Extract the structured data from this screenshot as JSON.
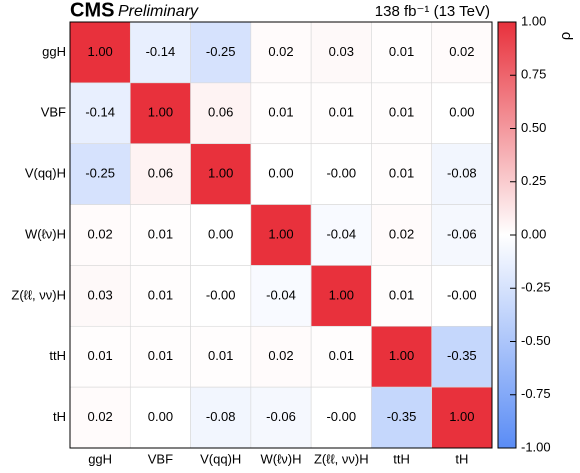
{
  "chart_data": {
    "type": "heatmap",
    "title": "CMS",
    "subtitle": "Preliminary",
    "annotation": "138 fb⁻¹ (13 TeV)",
    "colorbar_label": "ρ",
    "categories": [
      "ggH",
      "VBF",
      "V(qq)H",
      "W(ℓν)H",
      "Z(ℓℓ, νν)H",
      "ttH",
      "tH"
    ],
    "y_categories": [
      "ggH",
      "VBF",
      "V(qq)H",
      "W(ℓν)H",
      "Z(ℓℓ, νν)H",
      "ttH",
      "tH"
    ],
    "z": [
      [
        1,
        -0.14,
        -0.25,
        0.02,
        0.03,
        0.01,
        0.02
      ],
      [
        -0.14,
        1,
        0.06,
        0.01,
        0.01,
        0.01,
        0
      ],
      [
        -0.25,
        0.06,
        1,
        0,
        0,
        0.01,
        -0.08
      ],
      [
        0.02,
        0.01,
        0,
        1,
        -0.04,
        0.02,
        -0.06
      ],
      [
        0.03,
        0.01,
        0,
        -0.04,
        1,
        0.01,
        0
      ],
      [
        0.01,
        0.01,
        0.01,
        0.02,
        0.01,
        1,
        -0.35
      ],
      [
        0.02,
        0,
        -0.08,
        -0.06,
        0,
        -0.35,
        1
      ]
    ],
    "value_labels": [
      [
        "1.00",
        "-0.14",
        "-0.25",
        "0.02",
        "0.03",
        "0.01",
        "0.02"
      ],
      [
        "-0.14",
        "1.00",
        "0.06",
        "0.01",
        "0.01",
        "0.01",
        "0.00"
      ],
      [
        "-0.25",
        "0.06",
        "1.00",
        "0.00",
        "-0.00",
        "0.01",
        "-0.08"
      ],
      [
        "0.02",
        "0.01",
        "0.00",
        "1.00",
        "-0.04",
        "0.02",
        "-0.06"
      ],
      [
        "0.03",
        "0.01",
        "-0.00",
        "-0.04",
        "1.00",
        "0.01",
        "-0.00"
      ],
      [
        "0.01",
        "0.01",
        "0.01",
        "0.02",
        "0.01",
        "1.00",
        "-0.35"
      ],
      [
        "0.02",
        "0.00",
        "-0.08",
        "-0.06",
        "-0.00",
        "-0.35",
        "1.00"
      ]
    ],
    "zlim": [
      -1,
      1
    ],
    "zticks": [
      {
        "value": -1,
        "label": "-1.00"
      },
      {
        "value": -0.75,
        "label": "-0.75"
      },
      {
        "value": -0.5,
        "label": "-0.50"
      },
      {
        "value": -0.25,
        "label": "-0.25"
      },
      {
        "value": 0,
        "label": "0.00"
      },
      {
        "value": 0.25,
        "label": "0.25"
      },
      {
        "value": 0.5,
        "label": "0.50"
      },
      {
        "value": 0.75,
        "label": "0.75"
      },
      {
        "value": 1,
        "label": "1.00"
      }
    ],
    "colormap": [
      "#5a8cf5",
      "#ffffff",
      "#e8313c"
    ]
  }
}
